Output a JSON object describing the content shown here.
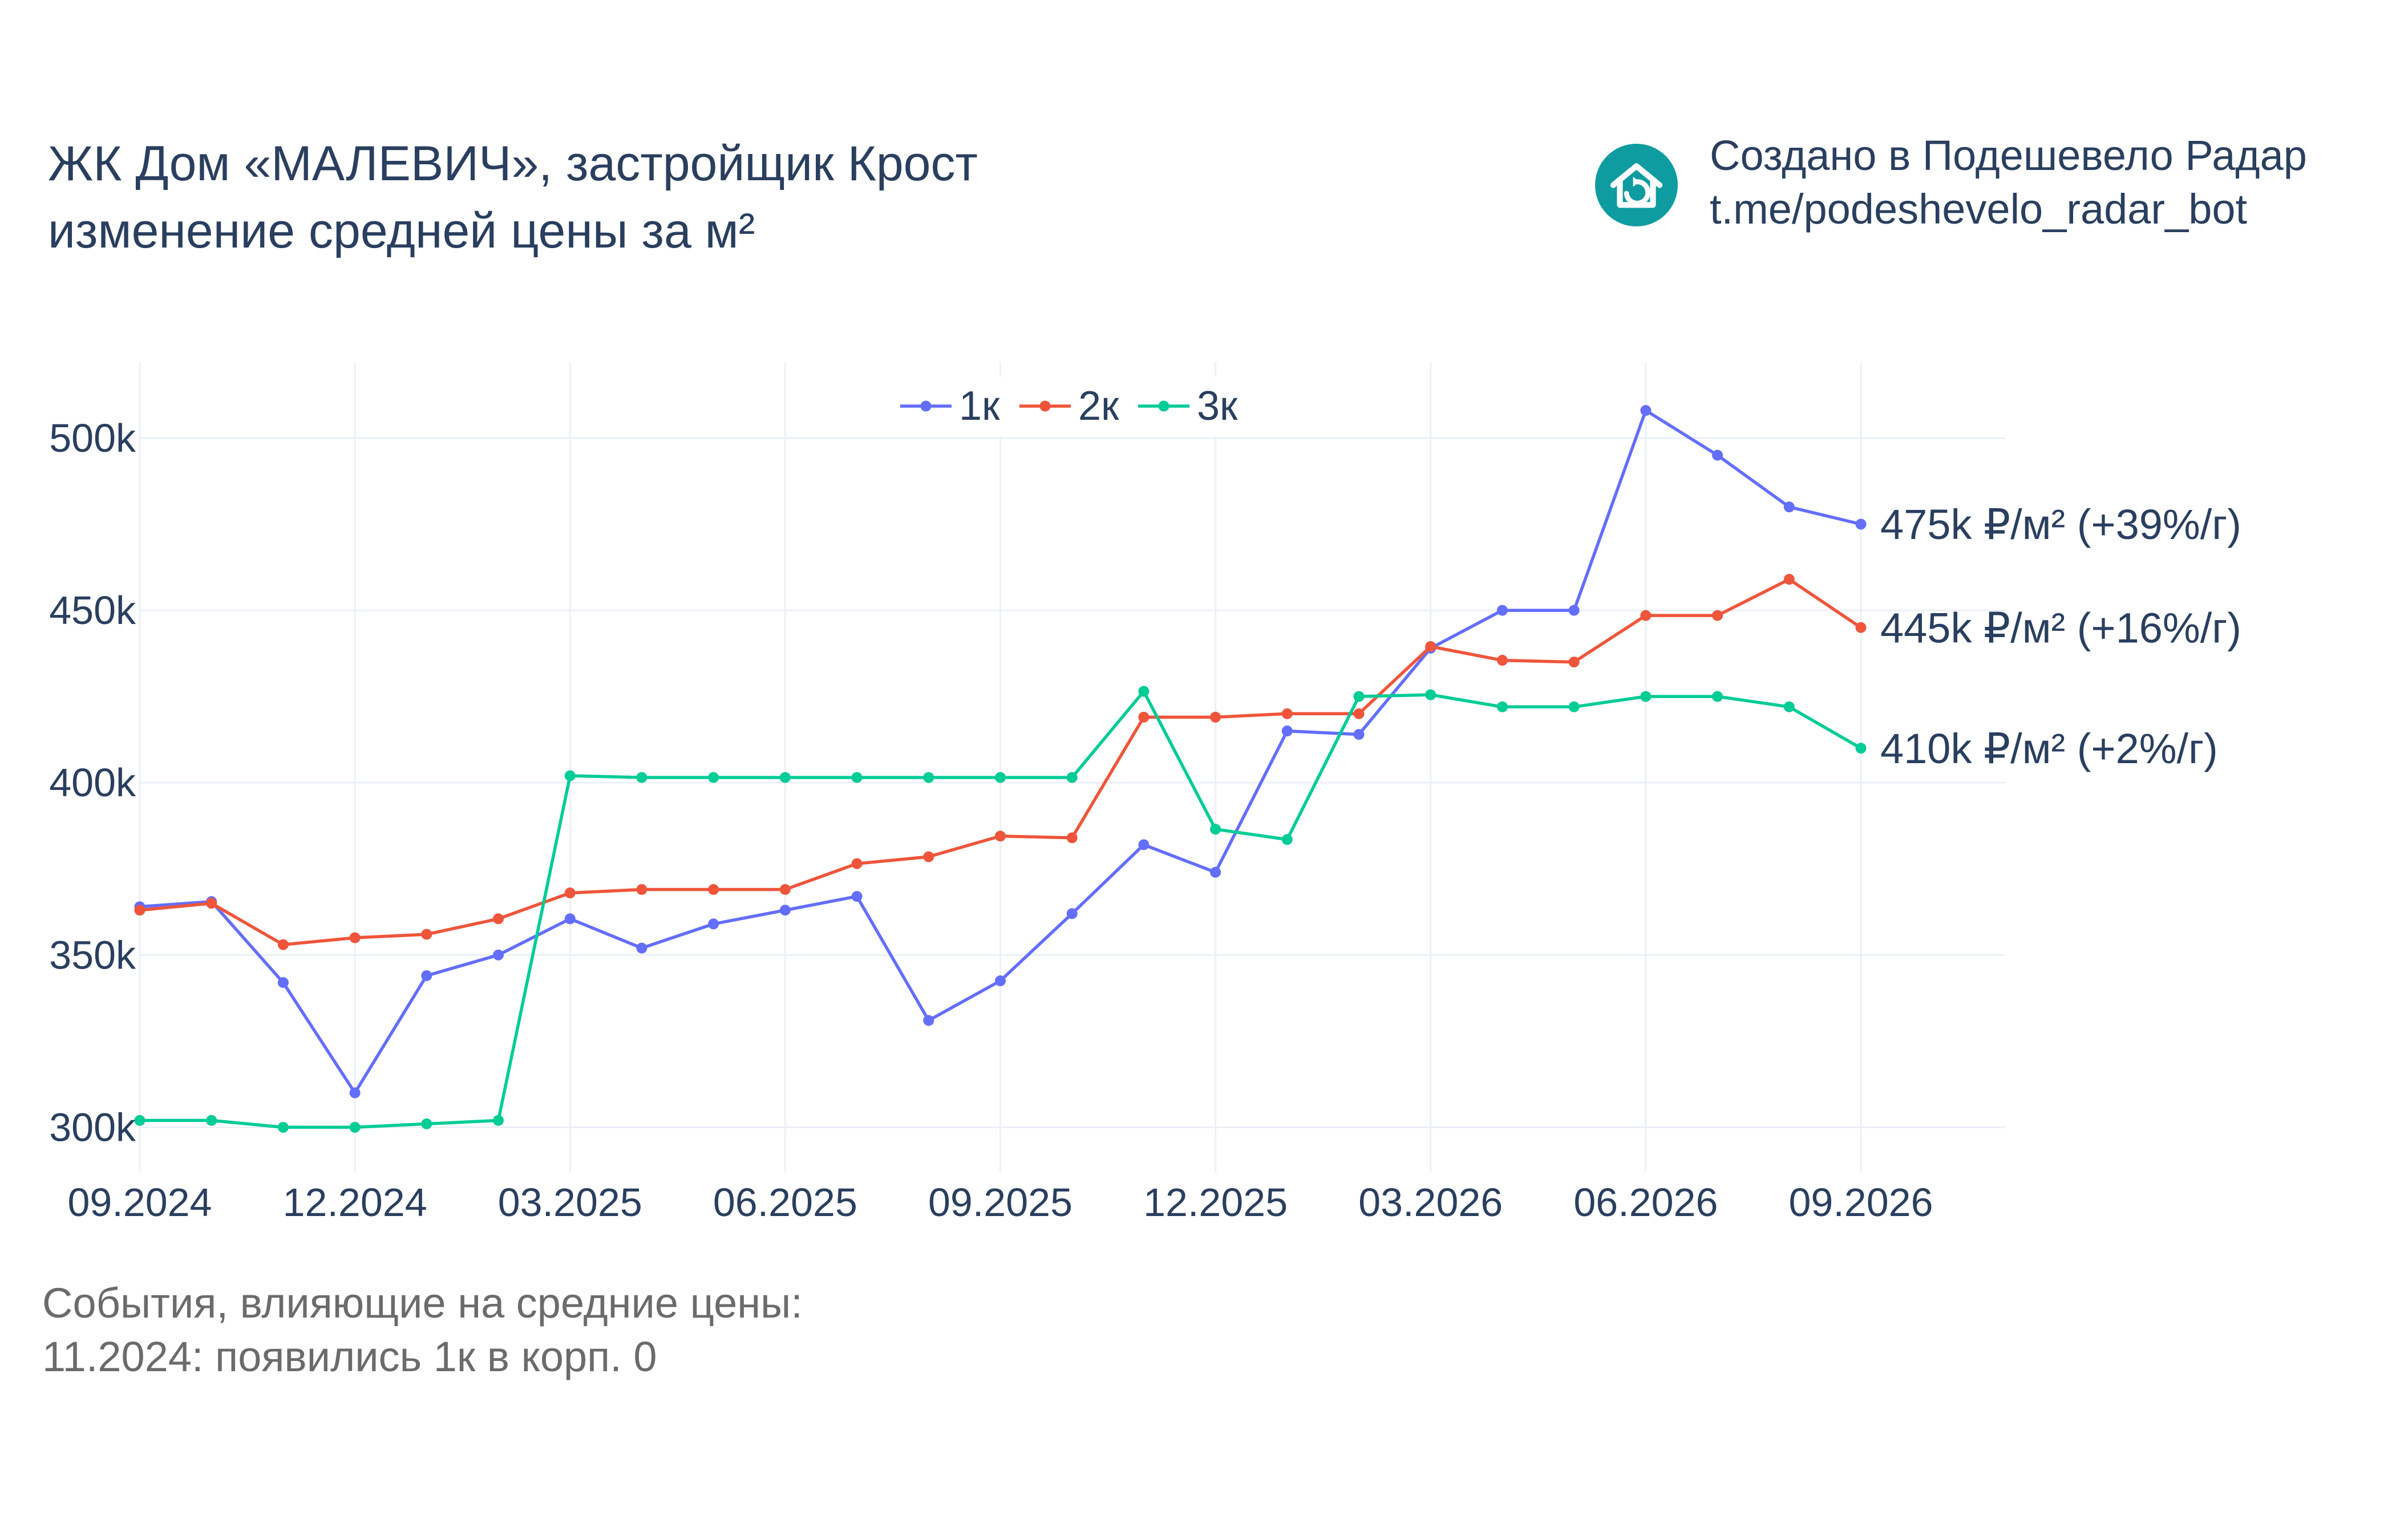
{
  "header": {
    "title_line1": "ЖК Дом «МАЛЕВИЧ», застройщик Крост",
    "title_line2": "изменение средней цены за м²"
  },
  "brand": {
    "line1": "Создано в Подешевело Радар",
    "line2": "t.me/podeshevelo_radar_bot",
    "logo_color": "#0f9ca0",
    "logo_icon": "house-refresh-icon"
  },
  "events": {
    "heading": "События, влияющие на средние цены:",
    "items": [
      "11.2024: появились 1к в корп. 0"
    ]
  },
  "chart_data": {
    "type": "line",
    "x": [
      "09.2024",
      "10.2024",
      "11.2024",
      "12.2024",
      "01.2025",
      "02.2025",
      "03.2025",
      "04.2025",
      "05.2025",
      "06.2025",
      "07.2025",
      "08.2025",
      "09.2025",
      "10.2025",
      "11.2025",
      "12.2025",
      "01.2026",
      "02.2026",
      "03.2026",
      "04.2026",
      "05.2026",
      "06.2026",
      "07.2026",
      "08.2026",
      "09.2026"
    ],
    "x_ticks": [
      "09.2024",
      "12.2024",
      "03.2025",
      "06.2025",
      "09.2025",
      "12.2025",
      "03.2026",
      "06.2026",
      "09.2026"
    ],
    "y_ticks": [
      "300k",
      "350k",
      "400k",
      "450k",
      "500k"
    ],
    "y_tick_values": [
      300000,
      350000,
      400000,
      450000,
      500000
    ],
    "ylim": [
      287000,
      522000
    ],
    "grid": true,
    "legend_position": "top-center",
    "series": [
      {
        "name": "1к",
        "color": "#636efa",
        "values": [
          364000,
          365500,
          342000,
          310000,
          344000,
          350000,
          360500,
          352000,
          359000,
          363000,
          367000,
          331000,
          342500,
          362000,
          382000,
          374000,
          415000,
          414000,
          439000,
          450000,
          450000,
          508000,
          495000,
          480000,
          475000
        ],
        "end_label": "475k ₽/м² (+39%/г)"
      },
      {
        "name": "2к",
        "color": "#ef553b",
        "values": [
          363000,
          365000,
          353000,
          355000,
          356000,
          360500,
          368000,
          369000,
          369000,
          369000,
          376500,
          378500,
          384500,
          384000,
          419000,
          419000,
          420000,
          420000,
          439500,
          435500,
          435000,
          448500,
          448500,
          459000,
          445000
        ],
        "end_label": "445k ₽/м² (+16%/г)"
      },
      {
        "name": "3к",
        "color": "#00cc96",
        "values": [
          302000,
          302000,
          300000,
          300000,
          301000,
          302000,
          402000,
          401500,
          401500,
          401500,
          401500,
          401500,
          401500,
          401500,
          426500,
          386500,
          383500,
          425000,
          425500,
          422000,
          422000,
          425000,
          425000,
          422000,
          410000
        ],
        "end_label": "410k ₽/м² (+2%/г)"
      }
    ]
  }
}
